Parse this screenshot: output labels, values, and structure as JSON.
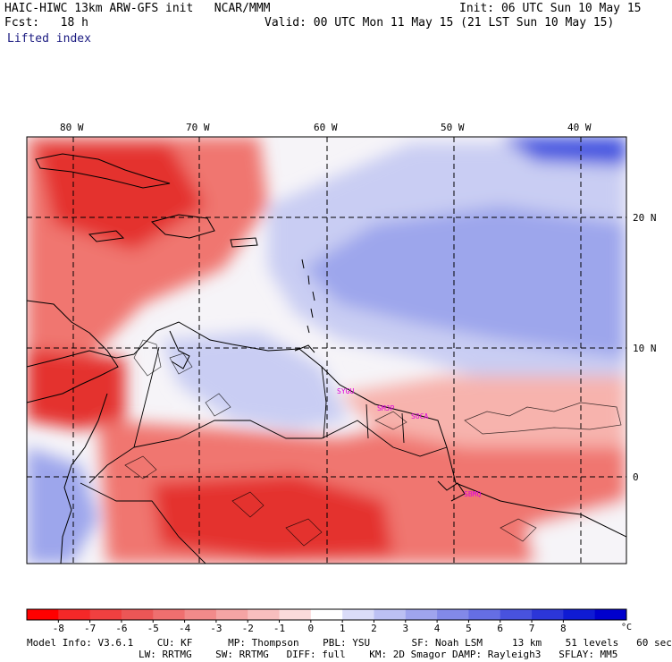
{
  "header": {
    "model_line": "HAIC-HIWC 13km ARW-GFS init   NCAR/MMM",
    "forecast_line": "Fcst:   18 h",
    "field_name": "Lifted index",
    "init_line": "Init: 06 UTC Sun 10 May 15",
    "valid_line": "Valid: 00 UTC Mon 11 May 15 (21 LST Sun 10 May 15)"
  },
  "map": {
    "lon_labels": [
      "80 W",
      "70 W",
      "60 W",
      "50 W",
      "40 W"
    ],
    "lat_labels": [
      "20 N",
      "10 N",
      "0"
    ],
    "stations": [
      "SYGU",
      "SMJP",
      "SOCA",
      "SBMQ"
    ],
    "colors": {
      "red_strong": "#e4322f",
      "red_mid": "#f0766f",
      "red_light": "#f7b3ad",
      "neutral": "#f6f4f8",
      "blue_light": "#c9cdf3",
      "blue_mid": "#9da6ec",
      "blue_strong": "#4252e0",
      "coast": "#000000",
      "station_label": "#dd00dd"
    }
  },
  "colorbar": {
    "ticks": [
      "-8",
      "-7",
      "-6",
      "-5",
      "-4",
      "-3",
      "-2",
      "-1",
      "0",
      "1",
      "2",
      "3",
      "4",
      "5",
      "6",
      "7",
      "8"
    ],
    "unit": "°C",
    "swatch_colors": [
      "#ff0000",
      "#f52828",
      "#f04040",
      "#ec5656",
      "#ef6f6f",
      "#f28a8a",
      "#f5a4a4",
      "#f8bebe",
      "#fbdada",
      "#ffffff",
      "#dadcf8",
      "#bcc0f3",
      "#9fa4ee",
      "#8289e8",
      "#656ee3",
      "#4852de",
      "#2c36d8",
      "#0f1bd3",
      "#0000cd"
    ]
  },
  "footer": {
    "line1": "Model Info: V3.6.1    CU: KF      MP: Thompson    PBL: YSU       SF: Noah LSM     13 km    51 levels   60 sec",
    "line2": "LW: RRTMG    SW: RRTMG   DIFF: full    KM: 2D Smagor DAMP: Rayleigh3   SFLAY: MM5"
  }
}
